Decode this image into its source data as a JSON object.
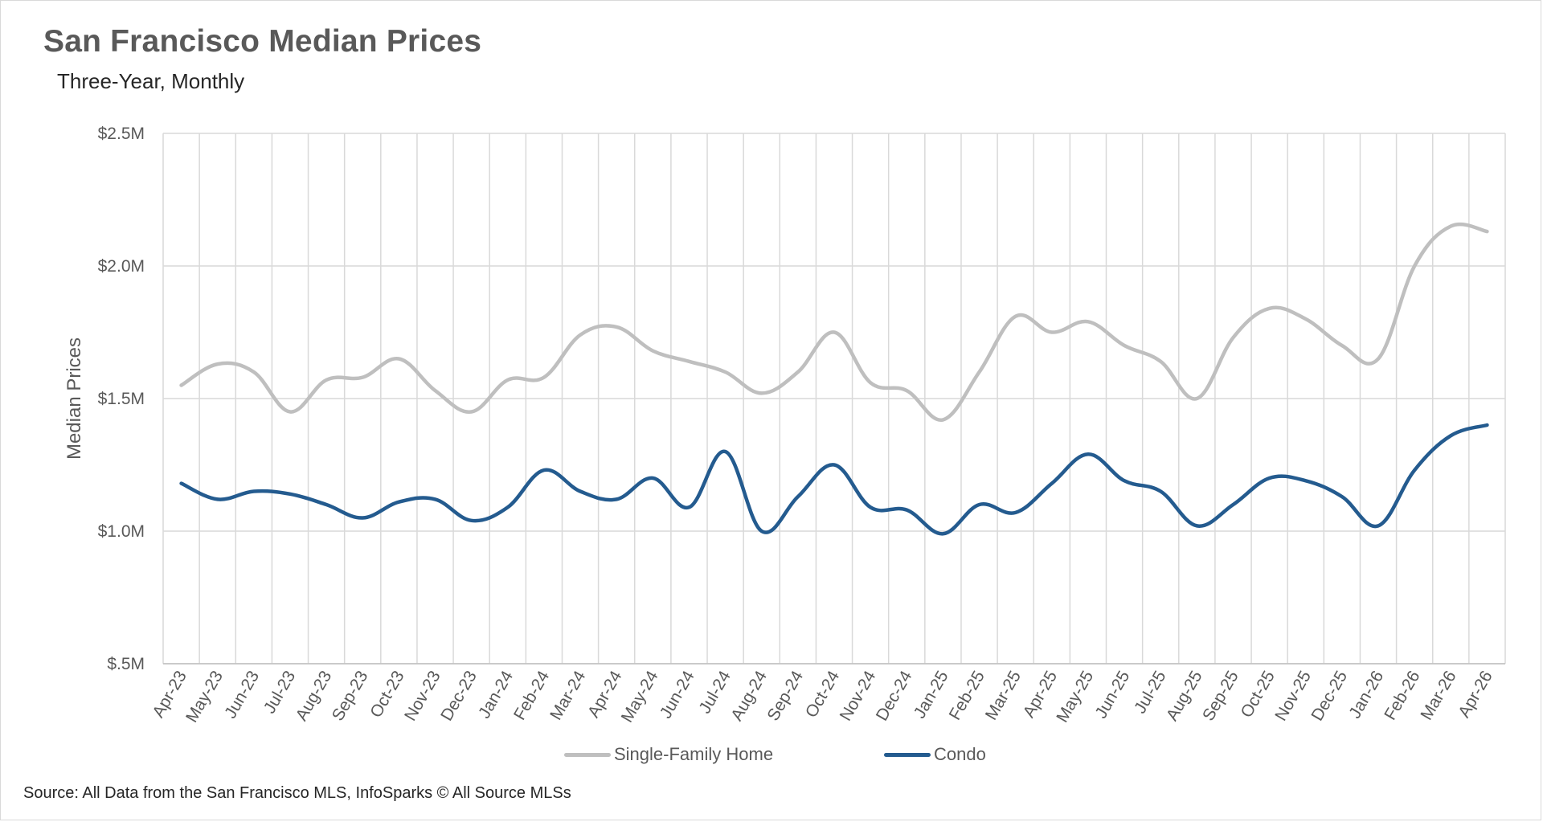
{
  "title": "San Francisco Median Prices",
  "subtitle": "Three-Year,  Monthly",
  "source": "Source: All Data from the San Francisco MLS, InfoSparks © All Source MLSs",
  "chart_data": {
    "type": "line",
    "ylabel": "Median Prices",
    "xlabel": "",
    "ylim": [
      500000,
      2500000
    ],
    "yticks": [
      500000,
      1000000,
      1500000,
      2000000,
      2500000
    ],
    "ytick_labels": [
      "$.5M",
      "$1.0M",
      "$1.5M",
      "$2.0M",
      "$2.5M"
    ],
    "grid": true,
    "legend_position": "bottom-center",
    "categories": [
      "Apr-23",
      "May-23",
      "Jun-23",
      "Jul-23",
      "Aug-23",
      "Sep-23",
      "Oct-23",
      "Nov-23",
      "Dec-23",
      "Jan-24",
      "Feb-24",
      "Mar-24",
      "Apr-24",
      "May-24",
      "Jun-24",
      "Jul-24",
      "Aug-24",
      "Sep-24",
      "Oct-24",
      "Nov-24",
      "Dec-24",
      "Jan-25",
      "Feb-25",
      "Mar-25",
      "Apr-25",
      "May-25",
      "Jun-25",
      "Jul-25",
      "Aug-25",
      "Sep-25",
      "Oct-25",
      "Nov-25",
      "Dec-25",
      "Jan-26",
      "Feb-26",
      "Mar-26",
      "Apr-26"
    ],
    "series": [
      {
        "name": "Single-Family Home",
        "color": "#bfbfbf",
        "values": [
          1550000,
          1630000,
          1600000,
          1450000,
          1570000,
          1580000,
          1650000,
          1530000,
          1450000,
          1570000,
          1580000,
          1740000,
          1770000,
          1680000,
          1640000,
          1600000,
          1520000,
          1600000,
          1750000,
          1560000,
          1530000,
          1420000,
          1600000,
          1810000,
          1750000,
          1790000,
          1700000,
          1640000,
          1500000,
          1730000,
          1840000,
          1800000,
          1700000,
          1650000,
          2000000,
          2150000,
          2130000
        ]
      },
      {
        "name": "Condo",
        "color": "#245b8f",
        "values": [
          1180000,
          1120000,
          1150000,
          1140000,
          1100000,
          1050000,
          1110000,
          1120000,
          1040000,
          1090000,
          1230000,
          1150000,
          1120000,
          1200000,
          1090000,
          1300000,
          1000000,
          1130000,
          1250000,
          1090000,
          1080000,
          990000,
          1100000,
          1070000,
          1180000,
          1290000,
          1190000,
          1150000,
          1020000,
          1100000,
          1200000,
          1190000,
          1130000,
          1020000,
          1230000,
          1360000,
          1400000
        ]
      }
    ]
  }
}
